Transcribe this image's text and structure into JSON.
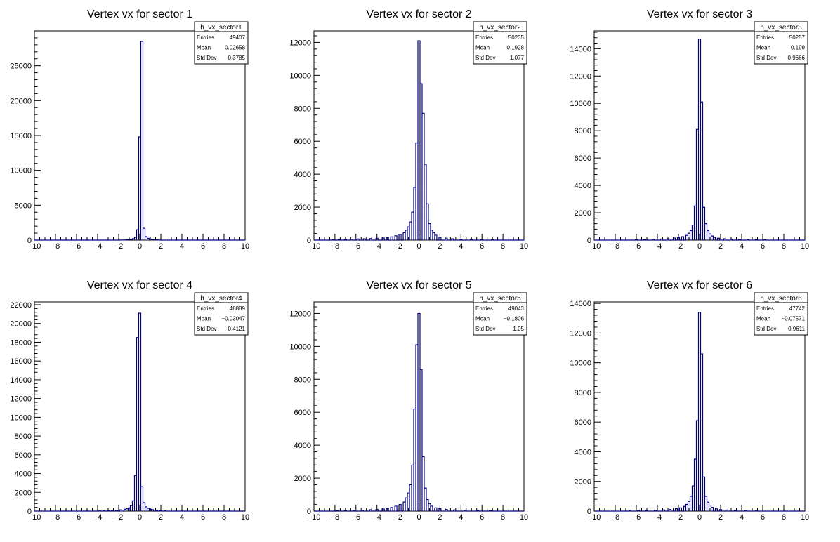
{
  "colors": {
    "histogram_line": "#000080",
    "axis": "#000000",
    "background": "#ffffff"
  },
  "chart_data": [
    {
      "type": "histogram",
      "title": "Vertex vx for sector 1",
      "xlim": [
        -10,
        10
      ],
      "ylim": [
        0,
        30000
      ],
      "xticks": [
        -10,
        -8,
        -6,
        -4,
        -2,
        0,
        2,
        4,
        6,
        8,
        10
      ],
      "yticks": [
        0,
        5000,
        10000,
        15000,
        20000,
        25000
      ],
      "bin_width": 0.2,
      "x": [
        -1.8,
        -1.6,
        -1.4,
        -1.2,
        -1.0,
        -0.8,
        -0.6,
        -0.4,
        -0.2,
        0.0,
        0.2,
        0.4,
        0.6,
        0.8,
        1.0,
        1.2,
        1.4,
        1.6,
        1.8
      ],
      "values": [
        10,
        20,
        30,
        50,
        80,
        120,
        200,
        400,
        1500,
        14800,
        28500,
        1700,
        500,
        250,
        150,
        100,
        70,
        40,
        20
      ],
      "stats": {
        "name": "h_vx_sector1",
        "rows": [
          {
            "label": "Entries",
            "value": "49407"
          },
          {
            "label": "Mean",
            "value": "0.02658"
          },
          {
            "label": "Std Dev",
            "value": "0.3785"
          }
        ]
      }
    },
    {
      "type": "histogram",
      "title": "Vertex vx for sector 2",
      "xlim": [
        -10,
        10
      ],
      "ylim": [
        0,
        12700
      ],
      "xticks": [
        -10,
        -8,
        -6,
        -4,
        -2,
        0,
        2,
        4,
        6,
        8,
        10
      ],
      "yticks": [
        0,
        2000,
        4000,
        6000,
        8000,
        10000,
        12000
      ],
      "bin_width": 0.2,
      "x": [
        -8.2,
        -7.6,
        -7.0,
        -6.4,
        -5.8,
        -5.2,
        -4.6,
        -4.0,
        -3.4,
        -3.0,
        -2.6,
        -2.2,
        -1.8,
        -1.4,
        -1.2,
        -1.0,
        -0.8,
        -0.6,
        -0.4,
        -0.2,
        0.0,
        0.2,
        0.4,
        0.6,
        0.8,
        1.0,
        1.2,
        1.4,
        1.6,
        2.0,
        2.6,
        3.2,
        4.0,
        5.0,
        6.0,
        7.0
      ],
      "values": [
        30,
        40,
        50,
        60,
        70,
        80,
        90,
        110,
        130,
        160,
        200,
        260,
        350,
        450,
        600,
        800,
        1100,
        1700,
        3200,
        5900,
        12100,
        9500,
        7700,
        4600,
        2200,
        1000,
        600,
        450,
        300,
        180,
        120,
        80,
        60,
        40,
        30,
        20
      ],
      "stats": {
        "name": "h_vx_sector2",
        "rows": [
          {
            "label": "Entries",
            "value": "50235"
          },
          {
            "label": "Mean",
            "value": "0.1928"
          },
          {
            "label": "Std Dev",
            "value": "1.077"
          }
        ]
      }
    },
    {
      "type": "histogram",
      "title": "Vertex vx for sector 3",
      "xlim": [
        -10,
        10
      ],
      "ylim": [
        0,
        15300
      ],
      "xticks": [
        -10,
        -8,
        -6,
        -4,
        -2,
        0,
        2,
        4,
        6,
        8,
        10
      ],
      "yticks": [
        0,
        2000,
        4000,
        6000,
        8000,
        10000,
        12000,
        14000
      ],
      "bin_width": 0.2,
      "x": [
        -6.0,
        -5.2,
        -4.4,
        -3.6,
        -3.0,
        -2.4,
        -2.0,
        -1.6,
        -1.2,
        -1.0,
        -0.8,
        -0.6,
        -0.4,
        -0.2,
        0.0,
        0.2,
        0.4,
        0.6,
        0.8,
        1.0,
        1.2,
        1.4,
        1.8,
        2.4,
        3.0,
        3.8,
        4.6,
        5.4,
        6.2
      ],
      "values": [
        40,
        50,
        60,
        80,
        100,
        150,
        200,
        250,
        350,
        500,
        700,
        1100,
        2500,
        8100,
        14700,
        10100,
        2400,
        1200,
        700,
        450,
        300,
        200,
        140,
        100,
        80,
        60,
        50,
        40,
        30
      ],
      "stats": {
        "name": "h_vx_sector3",
        "rows": [
          {
            "label": "Entries",
            "value": "50257"
          },
          {
            "label": "Mean",
            "value": "0.199"
          },
          {
            "label": "Std Dev",
            "value": "0.9666"
          }
        ]
      }
    },
    {
      "type": "histogram",
      "title": "Vertex vx for sector 4",
      "xlim": [
        -10,
        10
      ],
      "ylim": [
        0,
        22300
      ],
      "xticks": [
        -10,
        -8,
        -6,
        -4,
        -2,
        0,
        2,
        4,
        6,
        8,
        10
      ],
      "yticks": [
        0,
        2000,
        4000,
        6000,
        8000,
        10000,
        12000,
        14000,
        16000,
        18000,
        20000,
        22000
      ],
      "bin_width": 0.2,
      "x": [
        -3.8,
        -3.4,
        -3.0,
        -2.6,
        -2.2,
        -1.8,
        -1.4,
        -1.2,
        -1.0,
        -0.8,
        -0.6,
        -0.4,
        -0.2,
        0.0,
        0.2,
        0.4,
        0.6,
        0.8,
        1.0,
        1.2,
        1.6,
        2.0,
        2.4
      ],
      "values": [
        20,
        30,
        40,
        60,
        90,
        130,
        200,
        250,
        350,
        600,
        1100,
        3800,
        18500,
        21100,
        2600,
        900,
        450,
        300,
        200,
        150,
        80,
        50,
        30
      ],
      "stats": {
        "name": "h_vx_sector4",
        "rows": [
          {
            "label": "Entries",
            "value": "48889"
          },
          {
            "label": "Mean",
            "value": "−0.03047"
          },
          {
            "label": "Std Dev",
            "value": "0.4121"
          }
        ]
      }
    },
    {
      "type": "histogram",
      "title": "Vertex vx for sector 5",
      "xlim": [
        -10,
        10
      ],
      "ylim": [
        0,
        12700
      ],
      "xticks": [
        -10,
        -8,
        -6,
        -4,
        -2,
        0,
        2,
        4,
        6,
        8,
        10
      ],
      "yticks": [
        0,
        2000,
        4000,
        6000,
        8000,
        10000,
        12000
      ],
      "bin_width": 0.2,
      "x": [
        -7.8,
        -7.0,
        -6.2,
        -5.4,
        -4.6,
        -4.0,
        -3.4,
        -3.0,
        -2.6,
        -2.2,
        -1.8,
        -1.4,
        -1.2,
        -1.0,
        -0.8,
        -0.6,
        -0.4,
        -0.2,
        0.0,
        0.2,
        0.4,
        0.6,
        0.8,
        1.0,
        1.2,
        1.6,
        2.0,
        2.6,
        3.4,
        4.4,
        5.6,
        6.8
      ],
      "values": [
        30,
        40,
        50,
        60,
        80,
        100,
        130,
        170,
        220,
        300,
        400,
        550,
        800,
        1100,
        1600,
        2800,
        6200,
        10100,
        12000,
        8600,
        3300,
        1400,
        700,
        450,
        300,
        200,
        150,
        100,
        70,
        50,
        30,
        20
      ],
      "stats": {
        "name": "h_vx_sector5",
        "rows": [
          {
            "label": "Entries",
            "value": "49043"
          },
          {
            "label": "Mean",
            "value": "−0.1806"
          },
          {
            "label": "Std Dev",
            "value": "1.05"
          }
        ]
      }
    },
    {
      "type": "histogram",
      "title": "Vertex vx for sector 6",
      "xlim": [
        -10,
        10
      ],
      "ylim": [
        0,
        14100
      ],
      "xticks": [
        -10,
        -8,
        -6,
        -4,
        -2,
        0,
        2,
        4,
        6,
        8,
        10
      ],
      "yticks": [
        0,
        2000,
        4000,
        6000,
        8000,
        10000,
        12000,
        14000
      ],
      "bin_width": 0.2,
      "x": [
        -6.6,
        -5.8,
        -5.0,
        -4.2,
        -3.4,
        -2.8,
        -2.2,
        -1.8,
        -1.4,
        -1.2,
        -1.0,
        -0.8,
        -0.6,
        -0.4,
        -0.2,
        0.0,
        0.2,
        0.4,
        0.6,
        0.8,
        1.0,
        1.2,
        1.6,
        2.0,
        2.6,
        3.4,
        4.4,
        5.4
      ],
      "values": [
        30,
        40,
        50,
        60,
        80,
        110,
        160,
        220,
        320,
        450,
        650,
        1000,
        1700,
        3500,
        6100,
        13400,
        10600,
        2300,
        1000,
        600,
        400,
        250,
        150,
        100,
        70,
        50,
        30,
        20
      ],
      "stats": {
        "name": "h_vx_sector6",
        "rows": [
          {
            "label": "Entries",
            "value": "47742"
          },
          {
            "label": "Mean",
            "value": "−0.07571"
          },
          {
            "label": "Std Dev",
            "value": "0.9611"
          }
        ]
      }
    }
  ]
}
